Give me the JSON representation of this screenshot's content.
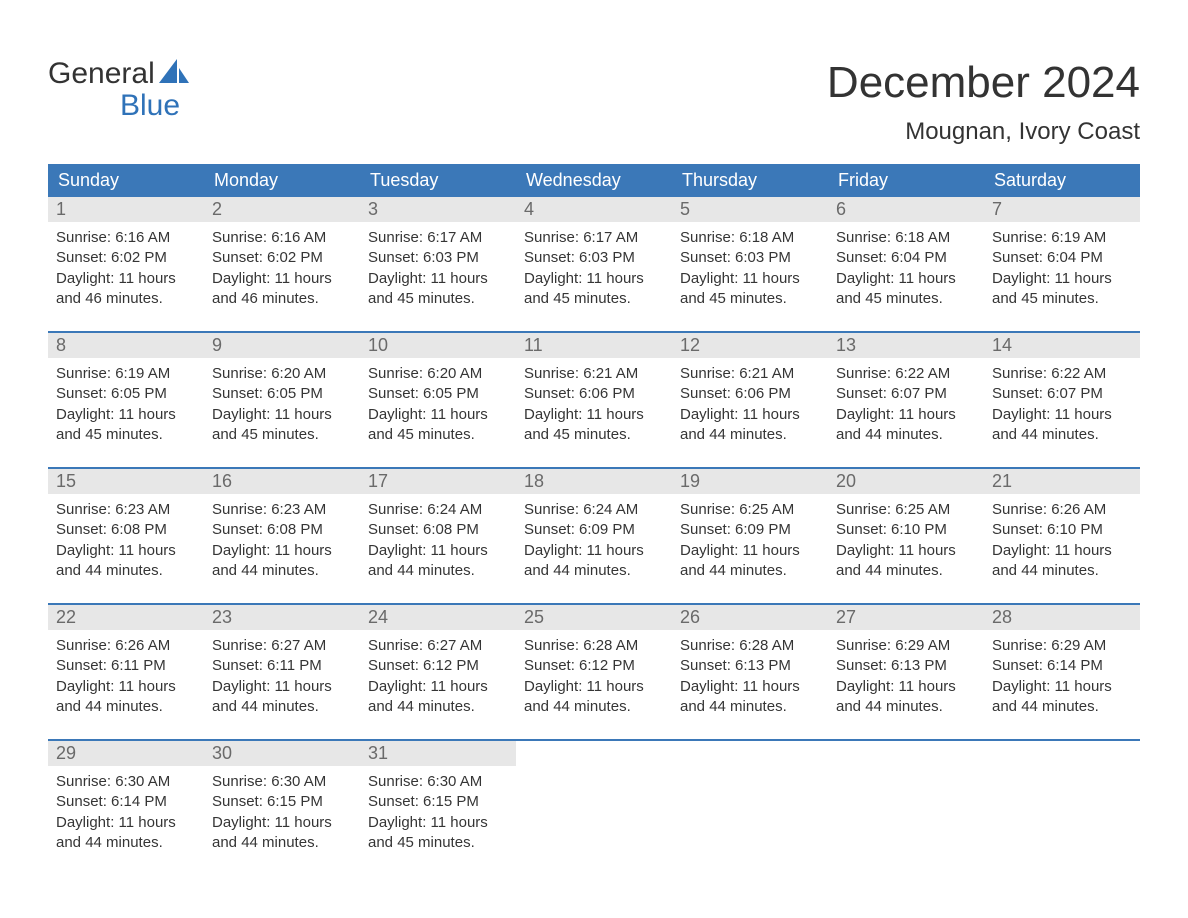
{
  "logo": {
    "word1": "General",
    "word2": "Blue",
    "word2_color": "#2f72b8"
  },
  "title": "December 2024",
  "location": "Mougnan, Ivory Coast",
  "colors": {
    "header_bg": "#3b78b8",
    "header_text": "#ffffff",
    "daynum_bg": "#e7e7e7",
    "daynum_text": "#6a6a6a",
    "body_text": "#353535",
    "rule": "#3b78b8",
    "page_bg": "#ffffff"
  },
  "weekdays": [
    "Sunday",
    "Monday",
    "Tuesday",
    "Wednesday",
    "Thursday",
    "Friday",
    "Saturday"
  ],
  "days": [
    {
      "n": 1,
      "sunrise": "6:16 AM",
      "sunset": "6:02 PM",
      "daylight": "11 hours and 46 minutes."
    },
    {
      "n": 2,
      "sunrise": "6:16 AM",
      "sunset": "6:02 PM",
      "daylight": "11 hours and 46 minutes."
    },
    {
      "n": 3,
      "sunrise": "6:17 AM",
      "sunset": "6:03 PM",
      "daylight": "11 hours and 45 minutes."
    },
    {
      "n": 4,
      "sunrise": "6:17 AM",
      "sunset": "6:03 PM",
      "daylight": "11 hours and 45 minutes."
    },
    {
      "n": 5,
      "sunrise": "6:18 AM",
      "sunset": "6:03 PM",
      "daylight": "11 hours and 45 minutes."
    },
    {
      "n": 6,
      "sunrise": "6:18 AM",
      "sunset": "6:04 PM",
      "daylight": "11 hours and 45 minutes."
    },
    {
      "n": 7,
      "sunrise": "6:19 AM",
      "sunset": "6:04 PM",
      "daylight": "11 hours and 45 minutes."
    },
    {
      "n": 8,
      "sunrise": "6:19 AM",
      "sunset": "6:05 PM",
      "daylight": "11 hours and 45 minutes."
    },
    {
      "n": 9,
      "sunrise": "6:20 AM",
      "sunset": "6:05 PM",
      "daylight": "11 hours and 45 minutes."
    },
    {
      "n": 10,
      "sunrise": "6:20 AM",
      "sunset": "6:05 PM",
      "daylight": "11 hours and 45 minutes."
    },
    {
      "n": 11,
      "sunrise": "6:21 AM",
      "sunset": "6:06 PM",
      "daylight": "11 hours and 45 minutes."
    },
    {
      "n": 12,
      "sunrise": "6:21 AM",
      "sunset": "6:06 PM",
      "daylight": "11 hours and 44 minutes."
    },
    {
      "n": 13,
      "sunrise": "6:22 AM",
      "sunset": "6:07 PM",
      "daylight": "11 hours and 44 minutes."
    },
    {
      "n": 14,
      "sunrise": "6:22 AM",
      "sunset": "6:07 PM",
      "daylight": "11 hours and 44 minutes."
    },
    {
      "n": 15,
      "sunrise": "6:23 AM",
      "sunset": "6:08 PM",
      "daylight": "11 hours and 44 minutes."
    },
    {
      "n": 16,
      "sunrise": "6:23 AM",
      "sunset": "6:08 PM",
      "daylight": "11 hours and 44 minutes."
    },
    {
      "n": 17,
      "sunrise": "6:24 AM",
      "sunset": "6:08 PM",
      "daylight": "11 hours and 44 minutes."
    },
    {
      "n": 18,
      "sunrise": "6:24 AM",
      "sunset": "6:09 PM",
      "daylight": "11 hours and 44 minutes."
    },
    {
      "n": 19,
      "sunrise": "6:25 AM",
      "sunset": "6:09 PM",
      "daylight": "11 hours and 44 minutes."
    },
    {
      "n": 20,
      "sunrise": "6:25 AM",
      "sunset": "6:10 PM",
      "daylight": "11 hours and 44 minutes."
    },
    {
      "n": 21,
      "sunrise": "6:26 AM",
      "sunset": "6:10 PM",
      "daylight": "11 hours and 44 minutes."
    },
    {
      "n": 22,
      "sunrise": "6:26 AM",
      "sunset": "6:11 PM",
      "daylight": "11 hours and 44 minutes."
    },
    {
      "n": 23,
      "sunrise": "6:27 AM",
      "sunset": "6:11 PM",
      "daylight": "11 hours and 44 minutes."
    },
    {
      "n": 24,
      "sunrise": "6:27 AM",
      "sunset": "6:12 PM",
      "daylight": "11 hours and 44 minutes."
    },
    {
      "n": 25,
      "sunrise": "6:28 AM",
      "sunset": "6:12 PM",
      "daylight": "11 hours and 44 minutes."
    },
    {
      "n": 26,
      "sunrise": "6:28 AM",
      "sunset": "6:13 PM",
      "daylight": "11 hours and 44 minutes."
    },
    {
      "n": 27,
      "sunrise": "6:29 AM",
      "sunset": "6:13 PM",
      "daylight": "11 hours and 44 minutes."
    },
    {
      "n": 28,
      "sunrise": "6:29 AM",
      "sunset": "6:14 PM",
      "daylight": "11 hours and 44 minutes."
    },
    {
      "n": 29,
      "sunrise": "6:30 AM",
      "sunset": "6:14 PM",
      "daylight": "11 hours and 44 minutes."
    },
    {
      "n": 30,
      "sunrise": "6:30 AM",
      "sunset": "6:15 PM",
      "daylight": "11 hours and 44 minutes."
    },
    {
      "n": 31,
      "sunrise": "6:30 AM",
      "sunset": "6:15 PM",
      "daylight": "11 hours and 45 minutes."
    }
  ],
  "labels": {
    "sunrise": "Sunrise:",
    "sunset": "Sunset:",
    "daylight": "Daylight:"
  },
  "layout": {
    "columns": 7,
    "first_weekday_index": 0,
    "fonts": {
      "title_pt": 44,
      "location_pt": 24,
      "weekday_pt": 18,
      "daynum_pt": 18,
      "body_pt": 15
    }
  }
}
